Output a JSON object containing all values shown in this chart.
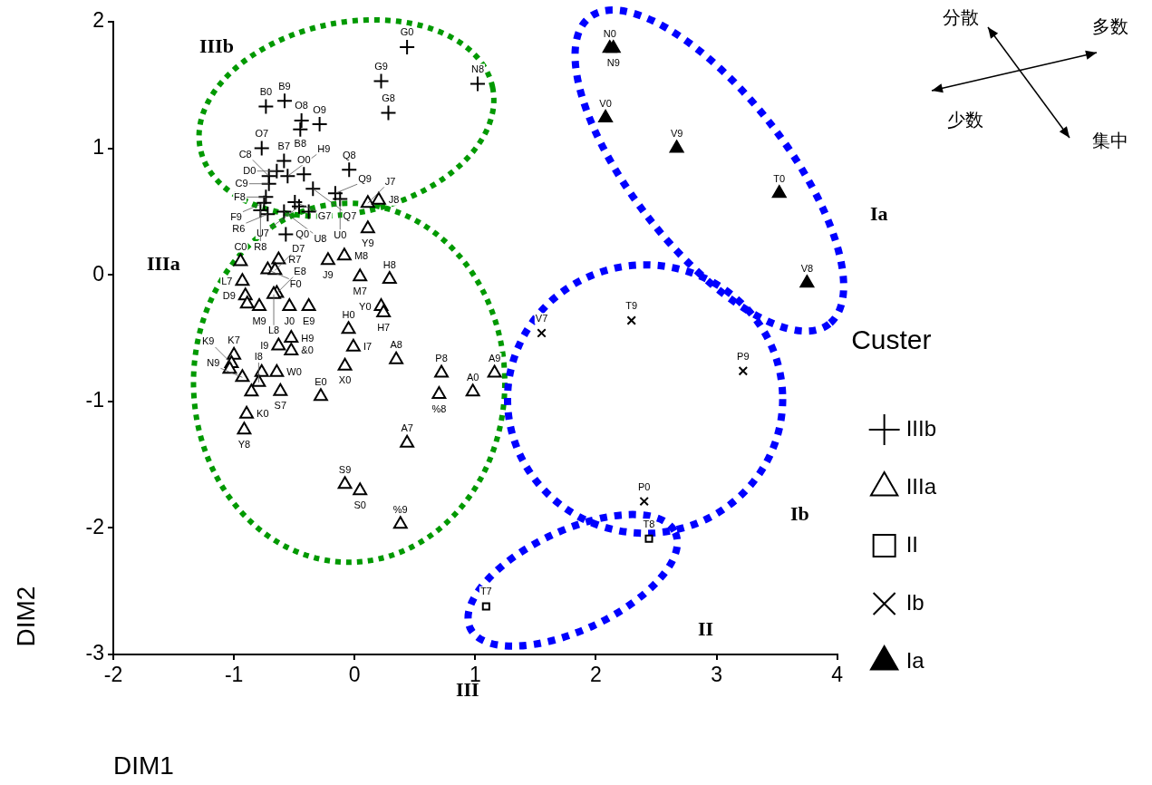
{
  "chart_data": {
    "type": "scatter",
    "xlabel": "DIM1",
    "ylabel": "DIM2",
    "legend_title": "Custer",
    "legend": "right",
    "grid": false,
    "xlim": [
      -2,
      4
    ],
    "xticks": [
      -2,
      -1,
      0,
      1,
      2,
      3,
      4
    ],
    "ylim": [
      -3,
      2
    ],
    "yticks": [
      -3,
      -2,
      -1,
      0,
      1,
      2
    ],
    "series": [
      {
        "name": "IIIb",
        "color": "#000000",
        "marker": "cross",
        "x": [
          0.435,
          0.22,
          0.28,
          1.02,
          -0.735,
          -0.58,
          -0.44,
          -0.45,
          -0.29,
          -0.77,
          -0.585,
          -0.645,
          -0.555,
          -0.42,
          -0.045,
          -0.71,
          -0.71,
          -0.345,
          -0.16,
          -0.12,
          -0.495,
          -0.46,
          -0.38,
          -0.735,
          -0.75,
          -0.78,
          -0.72,
          -0.585,
          -0.57
        ],
        "values": [
          1.8,
          1.53,
          1.28,
          1.51,
          1.33,
          1.375,
          1.22,
          1.15,
          1.19,
          1.0,
          0.9,
          0.82,
          0.78,
          0.795,
          0.83,
          0.78,
          0.72,
          0.68,
          0.645,
          0.6,
          0.575,
          0.54,
          0.5,
          0.615,
          0.57,
          0.51,
          0.48,
          0.5,
          0.32
        ]
      },
      {
        "name": "IIIa",
        "color": "#000000",
        "marker": "triangle",
        "x": [
          0.11,
          0.2,
          0.11,
          -0.945,
          -0.63,
          -0.72,
          -0.66,
          -0.93,
          -0.905,
          -0.89,
          -0.79,
          -0.645,
          -0.67,
          -0.54,
          -0.38,
          -0.22,
          -0.085,
          0.045,
          0.29,
          0.22,
          0.24,
          -0.05,
          -0.01,
          -0.08,
          0.345,
          -0.28,
          -0.63,
          -0.525,
          -0.525,
          -1.0,
          -1.02,
          -1.035,
          -0.93,
          -0.77,
          -0.795,
          -0.645,
          -0.615,
          -0.855,
          -0.895,
          -0.915,
          0.72,
          0.7,
          0.98,
          1.16,
          0.435,
          -0.08,
          0.045,
          0.38
        ],
        "values": [
          0.565,
          0.59,
          0.365,
          0.105,
          0.12,
          0.04,
          0.035,
          -0.05,
          -0.165,
          -0.23,
          -0.25,
          -0.145,
          -0.155,
          -0.25,
          -0.25,
          0.115,
          0.15,
          -0.015,
          -0.035,
          -0.25,
          -0.3,
          -0.43,
          -0.57,
          -0.72,
          -0.67,
          -0.96,
          -0.56,
          -0.5,
          -0.6,
          -0.635,
          -0.7,
          -0.745,
          -0.81,
          -0.77,
          -0.85,
          -0.77,
          -0.92,
          -0.925,
          -1.1,
          -1.225,
          -0.775,
          -0.945,
          -0.925,
          -0.775,
          -1.33,
          -1.655,
          -1.705,
          -1.97
        ]
      },
      {
        "name": "II",
        "color": "#000000",
        "marker": "square",
        "x": [
          2.44,
          1.09
        ],
        "values": [
          -2.085,
          -2.62
        ]
      },
      {
        "name": "Ib",
        "color": "#000000",
        "marker": "x",
        "x": [
          1.55,
          2.295,
          3.22,
          2.4
        ],
        "values": [
          -0.46,
          -0.36,
          -0.76,
          -1.79
        ]
      },
      {
        "name": "Ia",
        "color": "#000000",
        "marker": "triangle",
        "x": [
          2.115,
          2.145,
          2.08,
          2.67,
          3.52,
          3.75
        ],
        "values": [
          1.79,
          1.79,
          1.24,
          1.0,
          0.645,
          -0.065
        ]
      }
    ],
    "annotations": [
      "IIIb",
      "IIIa",
      "Ia",
      "Ib",
      "II",
      "III",
      "分散",
      "多数",
      "少数",
      "集中",
      {
        "text": "G0",
        "x": 0.435,
        "y": 1.8
      },
      {
        "text": "G9",
        "x": 0.22,
        "y": 1.53
      },
      {
        "text": "G8",
        "x": 0.28,
        "y": 1.28
      },
      {
        "text": "N8",
        "x": 1.02,
        "y": 1.51
      },
      {
        "text": "B0",
        "x": -0.735,
        "y": 1.33
      },
      {
        "text": "B9",
        "x": -0.58,
        "y": 1.375
      },
      {
        "text": "O8",
        "x": -0.44,
        "y": 1.22
      },
      {
        "text": "B8",
        "x": -0.45,
        "y": 1.15
      },
      {
        "text": "O9",
        "x": -0.29,
        "y": 1.19
      },
      {
        "text": "O7",
        "x": -0.77,
        "y": 1.0
      },
      {
        "text": "B7",
        "x": -0.585,
        "y": 0.9
      },
      {
        "text": "D0",
        "x": -0.645,
        "y": 0.82
      },
      {
        "text": "H9",
        "x": -0.555,
        "y": 0.78
      },
      {
        "text": "O0",
        "x": -0.42,
        "y": 0.795
      },
      {
        "text": "Q8",
        "x": -0.045,
        "y": 0.83
      },
      {
        "text": "C8",
        "x": -0.71,
        "y": 0.78
      },
      {
        "text": "C9",
        "x": -0.71,
        "y": 0.72
      },
      {
        "text": "Q7",
        "x": -0.345,
        "y": 0.68
      },
      {
        "text": "Q9",
        "x": -0.16,
        "y": 0.645
      },
      {
        "text": "U0",
        "x": -0.12,
        "y": 0.6
      },
      {
        "text": "G7",
        "x": -0.495,
        "y": 0.575
      },
      {
        "text": "U7",
        "x": -0.46,
        "y": 0.54
      },
      {
        "text": "F8",
        "x": -0.735,
        "y": 0.615
      },
      {
        "text": "F9",
        "x": -0.75,
        "y": 0.57
      },
      {
        "text": "R8",
        "x": -0.78,
        "y": 0.51
      },
      {
        "text": "R6",
        "x": -0.72,
        "y": 0.48
      },
      {
        "text": "U8",
        "x": -0.585,
        "y": 0.5
      },
      {
        "text": "Q0",
        "x": -0.57,
        "y": 0.32
      },
      {
        "text": "J7",
        "x": 0.11,
        "y": 0.565
      },
      {
        "text": "J8",
        "x": 0.2,
        "y": 0.59
      },
      {
        "text": "Y9",
        "x": 0.11,
        "y": 0.365
      },
      {
        "text": "C0",
        "x": -0.945,
        "y": 0.105
      },
      {
        "text": "R7",
        "x": -0.63,
        "y": 0.12
      },
      {
        "text": "F0",
        "x": -0.72,
        "y": 0.04
      },
      {
        "text": "D7",
        "x": -0.66,
        "y": 0.035
      },
      {
        "text": "L7",
        "x": -0.93,
        "y": -0.05
      },
      {
        "text": "D9",
        "x": -0.905,
        "y": -0.165
      },
      {
        "text": "M9",
        "x": -0.79,
        "y": -0.25
      },
      {
        "text": "E8",
        "x": -0.645,
        "y": -0.145
      },
      {
        "text": "L8",
        "x": -0.67,
        "y": -0.155
      },
      {
        "text": "J0",
        "x": -0.54,
        "y": -0.25
      },
      {
        "text": "E9",
        "x": -0.38,
        "y": -0.25
      },
      {
        "text": "J9",
        "x": -0.22,
        "y": 0.115
      },
      {
        "text": "M8",
        "x": -0.085,
        "y": 0.15
      },
      {
        "text": "M7",
        "x": 0.045,
        "y": -0.015
      },
      {
        "text": "H8",
        "x": 0.29,
        "y": -0.035
      },
      {
        "text": "Y0",
        "x": 0.22,
        "y": -0.25
      },
      {
        "text": "H7",
        "x": 0.24,
        "y": -0.3
      },
      {
        "text": "H0",
        "x": -0.05,
        "y": -0.43
      },
      {
        "text": "I7",
        "x": -0.01,
        "y": -0.57
      },
      {
        "text": "X0",
        "x": -0.08,
        "y": -0.72
      },
      {
        "text": "A8",
        "x": 0.345,
        "y": -0.67
      },
      {
        "text": "E0",
        "x": -0.28,
        "y": -0.96
      },
      {
        "text": "I9",
        "x": -0.63,
        "y": -0.56
      },
      {
        "text": "H9",
        "x": -0.525,
        "y": -0.5
      },
      {
        "text": "&0",
        "x": -0.525,
        "y": -0.6
      },
      {
        "text": "K7",
        "x": -1.0,
        "y": -0.635
      },
      {
        "text": "K9",
        "x": -1.02,
        "y": -0.7
      },
      {
        "text": "N9",
        "x": -0.93,
        "y": -0.81
      },
      {
        "text": "I8",
        "x": -0.795,
        "y": -0.85
      },
      {
        "text": "W0",
        "x": -0.645,
        "y": -0.77
      },
      {
        "text": "S7",
        "x": -0.615,
        "y": -0.92
      },
      {
        "text": "K0",
        "x": -0.895,
        "y": -1.1
      },
      {
        "text": "Y8",
        "x": -0.915,
        "y": -1.225
      },
      {
        "text": "P8",
        "x": 0.72,
        "y": -0.775
      },
      {
        "text": "%8",
        "x": 0.7,
        "y": -0.945
      },
      {
        "text": "A0",
        "x": 0.98,
        "y": -0.925
      },
      {
        "text": "A9",
        "x": 1.16,
        "y": -0.775
      },
      {
        "text": "A7",
        "x": 0.435,
        "y": -1.33
      },
      {
        "text": "S9",
        "x": -0.08,
        "y": -1.655
      },
      {
        "text": "S0",
        "x": 0.045,
        "y": -1.705
      },
      {
        "text": "%9",
        "x": 0.38,
        "y": -1.97
      },
      {
        "text": "T8",
        "x": 2.44,
        "y": -2.085
      },
      {
        "text": "T7",
        "x": 1.09,
        "y": -2.62
      },
      {
        "text": "V7",
        "x": 1.55,
        "y": -0.46
      },
      {
        "text": "T9",
        "x": 2.295,
        "y": -0.36
      },
      {
        "text": "P9",
        "x": 3.22,
        "y": -0.76
      },
      {
        "text": "P0",
        "x": 2.4,
        "y": -1.79
      },
      {
        "text": "N0",
        "x": 2.115,
        "y": 1.79
      },
      {
        "text": "N9",
        "x": 2.145,
        "y": 1.79
      },
      {
        "text": "V0",
        "x": 2.08,
        "y": 1.24
      },
      {
        "text": "V9",
        "x": 2.67,
        "y": 1.0
      },
      {
        "text": "T0",
        "x": 3.52,
        "y": 0.645
      },
      {
        "text": "V8",
        "x": 3.75,
        "y": -0.065
      }
    ]
  }
}
